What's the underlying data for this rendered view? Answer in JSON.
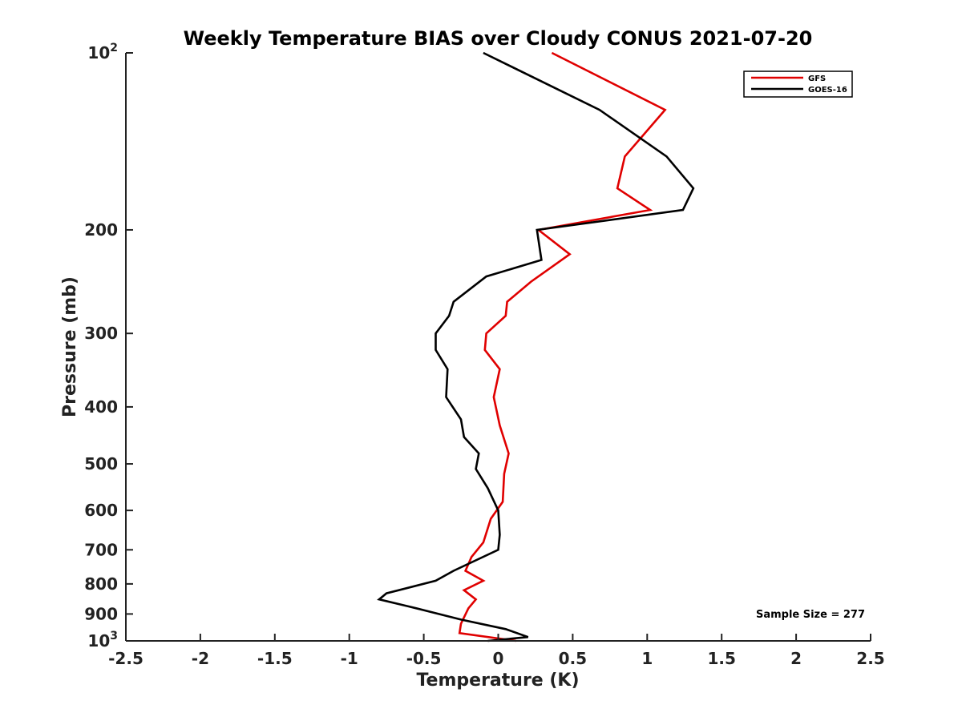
{
  "chart_data": {
    "type": "line",
    "title": "Weekly Temperature BIAS over Cloudy CONUS 2021-07-20",
    "xlabel": "Temperature (K)",
    "ylabel": "Pressure (mb)",
    "xlim": [
      -2.5,
      2.5
    ],
    "ylim": [
      100,
      1000
    ],
    "y_scale": "log",
    "y_reversed": true,
    "x_ticks": [
      "-2.5",
      "-2",
      "-1.5",
      "-1",
      "-0.5",
      "0",
      "0.5",
      "1",
      "1.5",
      "2",
      "2.5"
    ],
    "y_ticks": [
      {
        "value": 100,
        "label": "10",
        "sup": "2"
      },
      {
        "value": 200,
        "label": "200"
      },
      {
        "value": 300,
        "label": "300"
      },
      {
        "value": 400,
        "label": "400"
      },
      {
        "value": 500,
        "label": "500"
      },
      {
        "value": 600,
        "label": "600"
      },
      {
        "value": 700,
        "label": "700"
      },
      {
        "value": 800,
        "label": "800"
      },
      {
        "value": 900,
        "label": "900"
      },
      {
        "value": 1000,
        "label": "10",
        "sup": "3"
      }
    ],
    "legend_position": "top-right",
    "series": [
      {
        "name": "GFS",
        "color": "#e00000",
        "points": [
          [
            0.36,
            100
          ],
          [
            1.12,
            125
          ],
          [
            0.85,
            150
          ],
          [
            0.8,
            170
          ],
          [
            1.02,
            185
          ],
          [
            0.27,
            200
          ],
          [
            0.48,
            220
          ],
          [
            0.22,
            245
          ],
          [
            0.06,
            265
          ],
          [
            0.05,
            280
          ],
          [
            -0.08,
            300
          ],
          [
            -0.09,
            320
          ],
          [
            0.01,
            345
          ],
          [
            -0.03,
            385
          ],
          [
            0.01,
            430
          ],
          [
            0.07,
            480
          ],
          [
            0.04,
            520
          ],
          [
            0.03,
            580
          ],
          [
            -0.05,
            620
          ],
          [
            -0.1,
            680
          ],
          [
            -0.18,
            720
          ],
          [
            -0.22,
            760
          ],
          [
            -0.1,
            790
          ],
          [
            -0.23,
            820
          ],
          [
            -0.15,
            850
          ],
          [
            -0.2,
            880
          ],
          [
            -0.25,
            935
          ],
          [
            -0.26,
            970
          ],
          [
            0.12,
            1000
          ]
        ]
      },
      {
        "name": "GOES-16",
        "color": "#000000",
        "points": [
          [
            -0.1,
            100
          ],
          [
            0.68,
            125
          ],
          [
            1.13,
            150
          ],
          [
            1.31,
            170
          ],
          [
            1.24,
            185
          ],
          [
            0.26,
            200
          ],
          [
            0.29,
            225
          ],
          [
            -0.08,
            240
          ],
          [
            -0.3,
            265
          ],
          [
            -0.33,
            280
          ],
          [
            -0.42,
            300
          ],
          [
            -0.42,
            320
          ],
          [
            -0.34,
            345
          ],
          [
            -0.35,
            385
          ],
          [
            -0.25,
            420
          ],
          [
            -0.23,
            450
          ],
          [
            -0.13,
            480
          ],
          [
            -0.15,
            510
          ],
          [
            -0.07,
            550
          ],
          [
            0,
            600
          ],
          [
            0.01,
            660
          ],
          [
            0,
            700
          ],
          [
            -0.3,
            760
          ],
          [
            -0.42,
            790
          ],
          [
            -0.75,
            830
          ],
          [
            -0.8,
            850
          ],
          [
            -0.55,
            880
          ],
          [
            -0.25,
            920
          ],
          [
            0.05,
            955
          ],
          [
            0.2,
            985
          ],
          [
            -0.07,
            1000
          ]
        ]
      }
    ],
    "annotation": "Sample Size = 277"
  }
}
